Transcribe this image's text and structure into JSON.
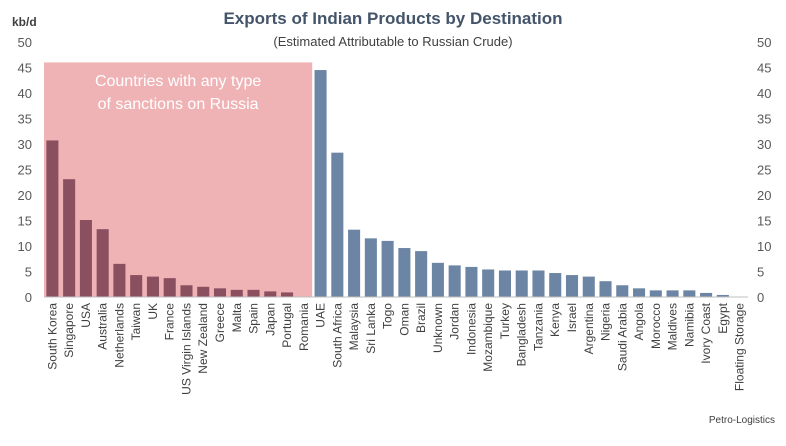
{
  "chart_data": {
    "type": "bar",
    "title": "Exports of Indian Products by Destination",
    "subtitle": "(Estimated Attributable to Russian Crude)",
    "ylabel": "kb/d",
    "ylim": [
      0,
      50
    ],
    "yticks": [
      0,
      5,
      10,
      15,
      20,
      25,
      30,
      35,
      40,
      45,
      50
    ],
    "grid": false,
    "secondary_axis": true,
    "categories": [
      "South Korea",
      "Singapore",
      "USA",
      "Australia",
      "Netherlands",
      "Taiwan",
      "UK",
      "France",
      "US Virgin Islands",
      "New Zealand",
      "Greece",
      "Malta",
      "Spain",
      "Japan",
      "Portugal",
      "Romania",
      "UAE",
      "South Africa",
      "Malaysia",
      "Sri Lanka",
      "Togo",
      "Oman",
      "Brazil",
      "Unknown",
      "Jordan",
      "Indonesia",
      "Mozambique",
      "Turkey",
      "Bangladesh",
      "Tanzania",
      "Kenya",
      "Israel",
      "Argentina",
      "Nigeria",
      "Saudi Arabia",
      "Angola",
      "Morocco",
      "Maldives",
      "Namibia",
      "Ivory Coast",
      "Egypt",
      "Floating Storage"
    ],
    "values": [
      30.7,
      23.1,
      15.1,
      13.3,
      6.5,
      4.3,
      4.0,
      3.7,
      2.3,
      2.0,
      1.7,
      1.4,
      1.4,
      1.1,
      0.9,
      0.0,
      44.5,
      28.3,
      13.2,
      11.5,
      11.0,
      9.6,
      9.0,
      6.7,
      6.2,
      5.9,
      5.4,
      5.2,
      5.2,
      5.2,
      4.7,
      4.3,
      4.0,
      3.1,
      2.3,
      1.7,
      1.3,
      1.3,
      1.3,
      0.8,
      0.4,
      0.0
    ],
    "sanctioned_count": 16,
    "annotation": [
      "Countries with any type",
      "of sanctions on Russia"
    ],
    "source": "Petro-Logistics",
    "colors": {
      "sanctioned_bar": "#8b5060",
      "sanctioned_region": "#efb3b6",
      "other_bar": "#6d85a4",
      "title": "#44546a"
    }
  }
}
